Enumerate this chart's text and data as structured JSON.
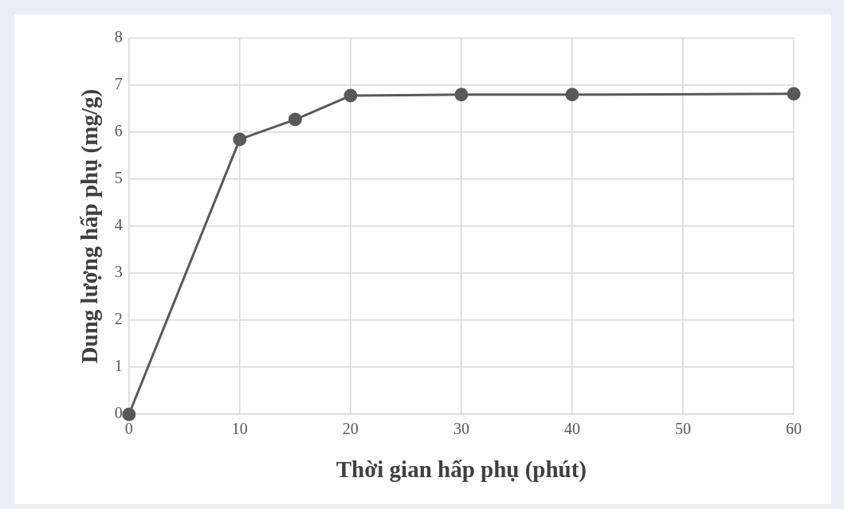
{
  "chart_data": {
    "type": "line",
    "xlabel": "Thời gian hấp phụ (phút)",
    "ylabel": "Dung lượng hấp phụ (mg/g)",
    "x": [
      0,
      10,
      15,
      20,
      30,
      40,
      60
    ],
    "series": [
      {
        "color": "#595959",
        "values": [
          0,
          5.85,
          6.27,
          6.78,
          6.8,
          6.8,
          6.82
        ]
      }
    ],
    "xlim": [
      0,
      60
    ],
    "xticks": [
      0,
      10,
      20,
      30,
      40,
      50,
      60
    ],
    "ylim": [
      0,
      8
    ],
    "yticks": [
      0,
      1,
      2,
      3,
      4,
      5,
      6,
      7,
      8
    ],
    "grid": true,
    "legend": false,
    "marker": "circle",
    "line_style": "solid"
  }
}
